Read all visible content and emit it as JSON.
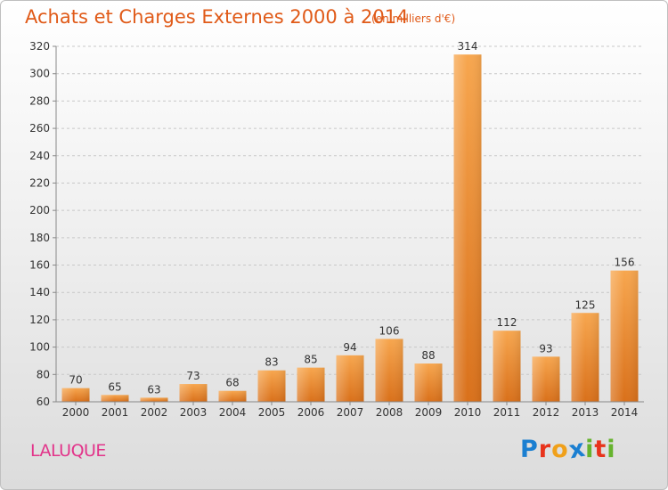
{
  "title": "Achats et Charges Externes 2000 à 2014",
  "subtitle": "(en milliers d'€)",
  "commune": "LALUQUE",
  "logo": {
    "letters": [
      "P",
      "r",
      "o",
      "x",
      "i",
      "t",
      "i"
    ],
    "colors": [
      "#1b7fd1",
      "#e8331b",
      "#f0a01a",
      "#1b7fd1",
      "#66b32e",
      "#e8331b",
      "#66b32e"
    ]
  },
  "chart_data": {
    "type": "bar",
    "categories": [
      "2000",
      "2001",
      "2002",
      "2003",
      "2004",
      "2005",
      "2006",
      "2007",
      "2008",
      "2009",
      "2010",
      "2011",
      "2012",
      "2013",
      "2014"
    ],
    "values": [
      70,
      65,
      63,
      73,
      68,
      83,
      85,
      94,
      106,
      88,
      314,
      112,
      93,
      125,
      156
    ],
    "ylim": [
      60,
      320
    ],
    "yticks": [
      60,
      80,
      100,
      120,
      140,
      160,
      180,
      200,
      220,
      240,
      260,
      280,
      300,
      320
    ],
    "grid": true,
    "bar_color": "#f08a24"
  }
}
